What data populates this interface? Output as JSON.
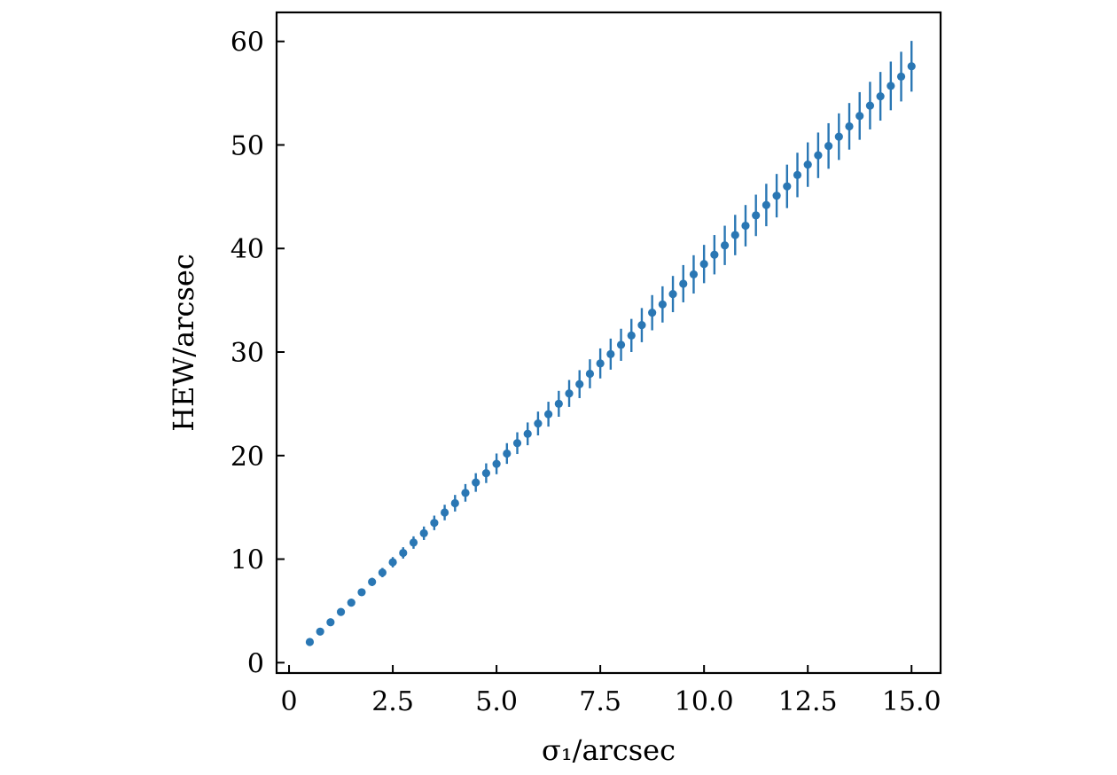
{
  "chart_data": {
    "type": "scatter",
    "title": "",
    "xlabel": "σ₁/arcsec",
    "ylabel": "HEW/arcsec",
    "xlim": [
      -0.3,
      15.7
    ],
    "ylim": [
      -1.0,
      62.8
    ],
    "grid": false,
    "xticks": [
      0,
      2.5,
      5.0,
      7.5,
      10.0,
      12.5,
      15.0
    ],
    "xtick_labels": [
      "0",
      "2.5",
      "5.0",
      "7.5",
      "10.0",
      "12.5",
      "15.0"
    ],
    "yticks": [
      0,
      10,
      20,
      30,
      40,
      50,
      60
    ],
    "ytick_labels": [
      "0",
      "10",
      "20",
      "30",
      "40",
      "50",
      "60"
    ],
    "color": "#2a77b4",
    "series": [
      {
        "x": [
          0.5,
          0.75,
          1.0,
          1.25,
          1.5,
          1.75,
          2.0,
          2.25,
          2.5,
          2.75,
          3.0,
          3.25,
          3.5,
          3.75,
          4.0,
          4.25,
          4.5,
          4.75,
          5.0,
          5.25,
          5.5,
          5.75,
          6.0,
          6.25,
          6.5,
          6.75,
          7.0,
          7.25,
          7.5,
          7.75,
          8.0,
          8.25,
          8.5,
          8.75,
          9.0,
          9.25,
          9.5,
          9.75,
          10.0,
          10.25,
          10.5,
          10.75,
          11.0,
          11.25,
          11.5,
          11.75,
          12.0,
          12.25,
          12.5,
          12.75,
          13.0,
          13.25,
          13.5,
          13.75,
          14.0,
          14.25,
          14.5,
          14.75,
          15.0
        ],
        "y": [
          2.0,
          3.0,
          3.9,
          4.9,
          5.8,
          6.8,
          7.8,
          8.7,
          9.7,
          10.6,
          11.6,
          12.5,
          13.5,
          14.5,
          15.4,
          16.4,
          17.4,
          18.3,
          19.2,
          20.2,
          21.2,
          22.1,
          23.1,
          24.0,
          25.0,
          26.0,
          26.9,
          27.9,
          28.9,
          29.8,
          30.7,
          31.6,
          32.6,
          33.8,
          34.6,
          35.6,
          36.6,
          37.5,
          38.5,
          39.4,
          40.3,
          41.3,
          42.2,
          43.2,
          44.2,
          45.1,
          46.0,
          47.1,
          48.1,
          49.0,
          49.9,
          50.8,
          51.8,
          52.8,
          53.8,
          54.7,
          55.7,
          56.6,
          57.6
        ],
        "yerr": [
          0.1,
          0.15,
          0.2,
          0.25,
          0.3,
          0.35,
          0.4,
          0.45,
          0.5,
          0.55,
          0.6,
          0.65,
          0.7,
          0.75,
          0.8,
          0.85,
          0.9,
          0.95,
          1.0,
          1.0,
          1.05,
          1.1,
          1.15,
          1.2,
          1.25,
          1.3,
          1.35,
          1.4,
          1.45,
          1.5,
          1.55,
          1.6,
          1.65,
          1.7,
          1.75,
          1.75,
          1.8,
          1.85,
          1.85,
          1.9,
          1.9,
          1.95,
          2.0,
          2.0,
          2.05,
          2.1,
          2.1,
          2.15,
          2.15,
          2.2,
          2.2,
          2.25,
          2.25,
          2.3,
          2.3,
          2.35,
          2.35,
          2.4,
          2.45
        ]
      }
    ]
  }
}
